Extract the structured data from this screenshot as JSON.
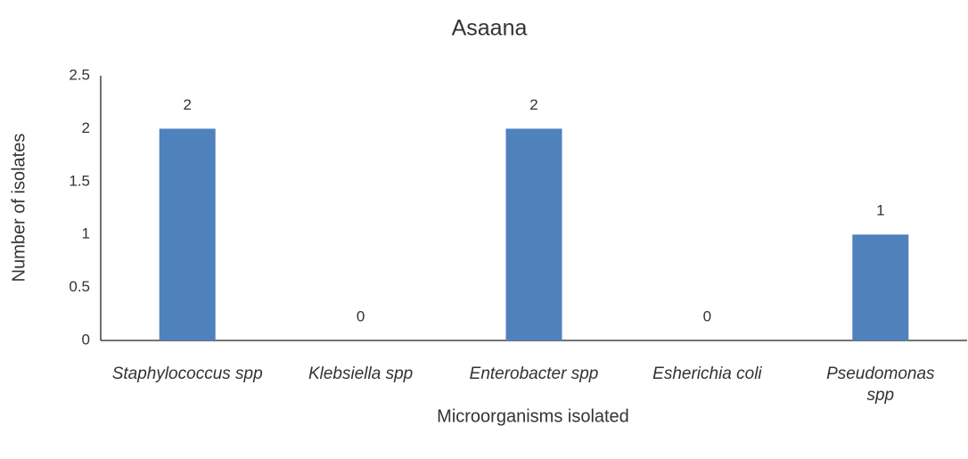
{
  "chart_data": {
    "type": "bar",
    "title": "Asaana",
    "x_label": "Microorganisms isolated",
    "y_label": "Number of isolates",
    "categories": [
      "Staphylococcus spp",
      "Klebsiella spp",
      "Enterobacter spp",
      "Esherichia coli",
      "Pseudomonas spp"
    ],
    "values": [
      2,
      0,
      2,
      0,
      1
    ],
    "color": "#4f81bd",
    "ylim": [
      0,
      2.5
    ],
    "yticks": [
      0,
      0.5,
      1,
      1.5,
      2,
      2.5
    ],
    "grid": false
  }
}
